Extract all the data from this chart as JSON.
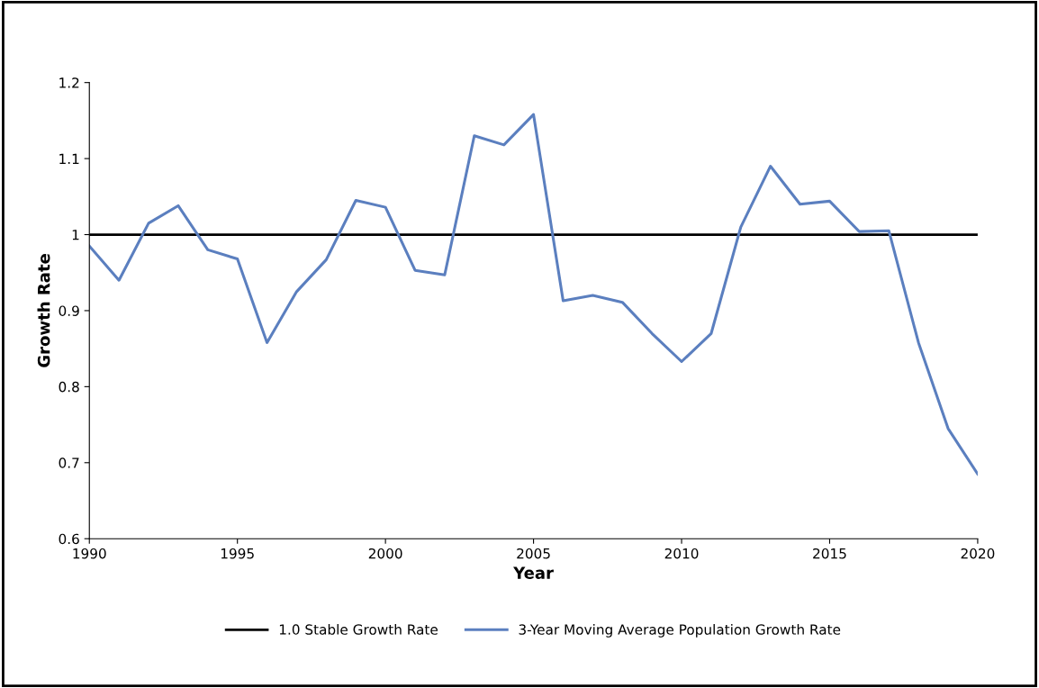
{
  "chart_data": {
    "type": "line",
    "xlabel": "Year",
    "ylabel": "Growth Rate",
    "x": [
      1990,
      1991,
      1992,
      1993,
      1994,
      1995,
      1996,
      1997,
      1998,
      1999,
      2000,
      2001,
      2002,
      2003,
      2004,
      2005,
      2006,
      2007,
      2008,
      2009,
      2010,
      2011,
      2012,
      2013,
      2014,
      2015,
      2016,
      2017,
      2018,
      2019,
      2020
    ],
    "series": [
      {
        "name": "3-Year Moving Average Population Growth Rate",
        "color": "#5b7fbf",
        "values": [
          0.985,
          0.94,
          1.015,
          1.038,
          0.98,
          0.968,
          0.858,
          0.925,
          0.967,
          1.045,
          1.036,
          0.953,
          0.947,
          1.13,
          1.118,
          1.158,
          0.913,
          0.92,
          0.911,
          0.87,
          0.833,
          0.87,
          1.01,
          1.09,
          1.04,
          1.044,
          1.004,
          1.005,
          0.858,
          0.745,
          0.685
        ]
      }
    ],
    "ref_lines": [
      {
        "axis": "y",
        "value": 1.0,
        "label": "1.0 Stable Growth Rate",
        "color": "#000000"
      }
    ],
    "xlim": [
      1990,
      2020
    ],
    "xticks": [
      1990,
      1995,
      2000,
      2005,
      2010,
      2015,
      2020
    ],
    "ylim": [
      0.6,
      1.2
    ],
    "yticks": [
      {
        "value": 0.6,
        "label": "0.6"
      },
      {
        "value": 0.7,
        "label": "0.7"
      },
      {
        "value": 0.8,
        "label": "0.8"
      },
      {
        "value": 0.9,
        "label": "0.9"
      },
      {
        "value": 1.0,
        "label": "1"
      },
      {
        "value": 1.1,
        "label": "1.1"
      },
      {
        "value": 1.2,
        "label": "1.2"
      }
    ],
    "grid": false,
    "legend": "bottom",
    "marker": "none",
    "line_style": "solid"
  }
}
